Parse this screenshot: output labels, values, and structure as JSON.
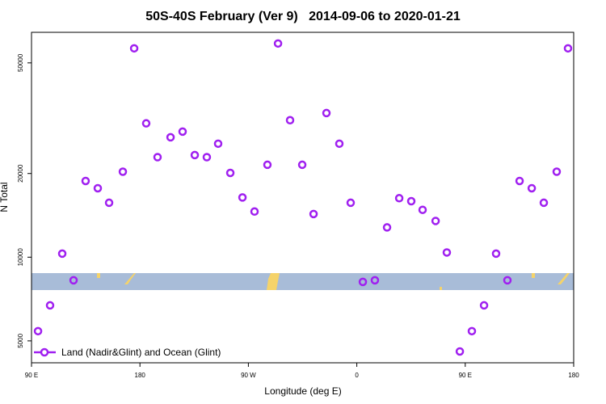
{
  "chart_data": {
    "type": "scatter",
    "title": "50S-40S February (Ver 9)   2014-09-06 to 2020-01-21",
    "x_label": "Longitude (deg E)",
    "y_label": "N Total",
    "log_y": true,
    "legend_position": "bottom-left",
    "xlim": [
      90,
      540
    ],
    "ylim": [
      4170,
      64400
    ],
    "xticks": [
      {
        "value": 90,
        "label": "90 E"
      },
      180,
      {
        "value": 270,
        "label": "90 W"
      },
      {
        "value": 360,
        "label": "0"
      },
      {
        "value": 450,
        "label": "90 E"
      },
      {
        "value": 540,
        "label": "180"
      }
    ],
    "yticks": [
      5000,
      10000,
      20000,
      50000
    ],
    "series": [
      {
        "name": "Land (Nadir&Glint) and Ocean (Glint)",
        "color": "#a020f0",
        "x": [
          95.4,
          105.4,
          115.5,
          124.9,
          134.9,
          145.0,
          154.4,
          165.8,
          175.2,
          185.2,
          194.6,
          205.4,
          215.4,
          225.5,
          235.5,
          244.9,
          255.0,
          265.1,
          275.1,
          285.8,
          294.6,
          304.6,
          314.7,
          324.1,
          334.8,
          345.5,
          354.9,
          365.0,
          375.0,
          385.1,
          395.2,
          405.2,
          414.6,
          425.4,
          434.7,
          445.5,
          455.5,
          465.6,
          475.6,
          485.0,
          495.1,
          505.2,
          515.2,
          525.9,
          535.3
        ],
        "values": [
          5420,
          6710,
          10300,
          8260,
          18800,
          17700,
          15700,
          20300,
          56400,
          30300,
          22900,
          27000,
          28300,
          23300,
          22900,
          25600,
          20100,
          16400,
          14600,
          21500,
          58700,
          31100,
          21500,
          14300,
          33000,
          25600,
          15700,
          8150,
          8260,
          12800,
          16300,
          15900,
          14800,
          13500,
          10400,
          4580,
          5420,
          6710,
          10300,
          8260,
          18800,
          17700,
          15700,
          20300,
          56400
        ]
      }
    ]
  }
}
